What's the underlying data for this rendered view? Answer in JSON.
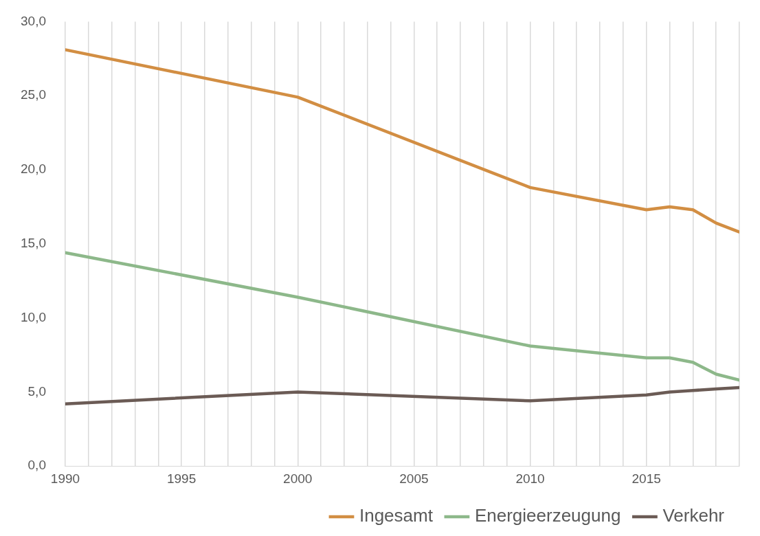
{
  "chart_data": {
    "type": "line",
    "xlim": [
      1990,
      2019
    ],
    "xticks": [
      1990,
      {
        "value": 1991,
        "label": null
      },
      {
        "value": 1992,
        "label": null
      },
      {
        "value": 1993,
        "label": null
      },
      {
        "value": 1994,
        "label": null
      },
      1995,
      {
        "value": 1996,
        "label": null
      },
      {
        "value": 1997,
        "label": null
      },
      {
        "value": 1998,
        "label": null
      },
      {
        "value": 1999,
        "label": null
      },
      2000,
      {
        "value": 2001,
        "label": null
      },
      {
        "value": 2002,
        "label": null
      },
      {
        "value": 2003,
        "label": null
      },
      {
        "value": 2004,
        "label": null
      },
      2005,
      {
        "value": 2006,
        "label": null
      },
      {
        "value": 2007,
        "label": null
      },
      {
        "value": 2008,
        "label": null
      },
      {
        "value": 2009,
        "label": null
      },
      2010,
      {
        "value": 2011,
        "label": null
      },
      {
        "value": 2012,
        "label": null
      },
      {
        "value": 2013,
        "label": null
      },
      {
        "value": 2014,
        "label": null
      },
      2015,
      {
        "value": 2016,
        "label": null
      },
      {
        "value": 2017,
        "label": null
      },
      {
        "value": 2018,
        "label": null
      },
      {
        "value": 2019,
        "label": null
      }
    ],
    "ylim": [
      0,
      30
    ],
    "yticks": [
      {
        "value": 0,
        "label": "0,0"
      },
      {
        "value": 5,
        "label": "5,0"
      },
      {
        "value": 10,
        "label": "10,0"
      },
      {
        "value": 15,
        "label": "15,0"
      },
      {
        "value": 20,
        "label": "20,0"
      },
      {
        "value": 25,
        "label": "25,0"
      },
      {
        "value": 30,
        "label": "30,0"
      }
    ],
    "x": [
      1990,
      2000,
      2010,
      2015,
      2016,
      2017,
      2018,
      2019
    ],
    "series": [
      {
        "name": "Ingesamt",
        "color": "#d28e43",
        "values": [
          28.1,
          24.9,
          18.8,
          17.3,
          17.5,
          17.3,
          16.4,
          15.8
        ]
      },
      {
        "name": "Energieerzeugung",
        "color": "#8db88a",
        "values": [
          14.4,
          11.4,
          8.1,
          7.3,
          7.3,
          7.0,
          6.2,
          5.8
        ]
      },
      {
        "name": "Verkehr",
        "color": "#6b5b55",
        "values": [
          4.2,
          5.0,
          4.4,
          4.8,
          5.0,
          5.1,
          5.2,
          5.3
        ]
      }
    ],
    "grid": "x",
    "legend": "bottom right",
    "marker": "none",
    "line_style": "solid"
  }
}
